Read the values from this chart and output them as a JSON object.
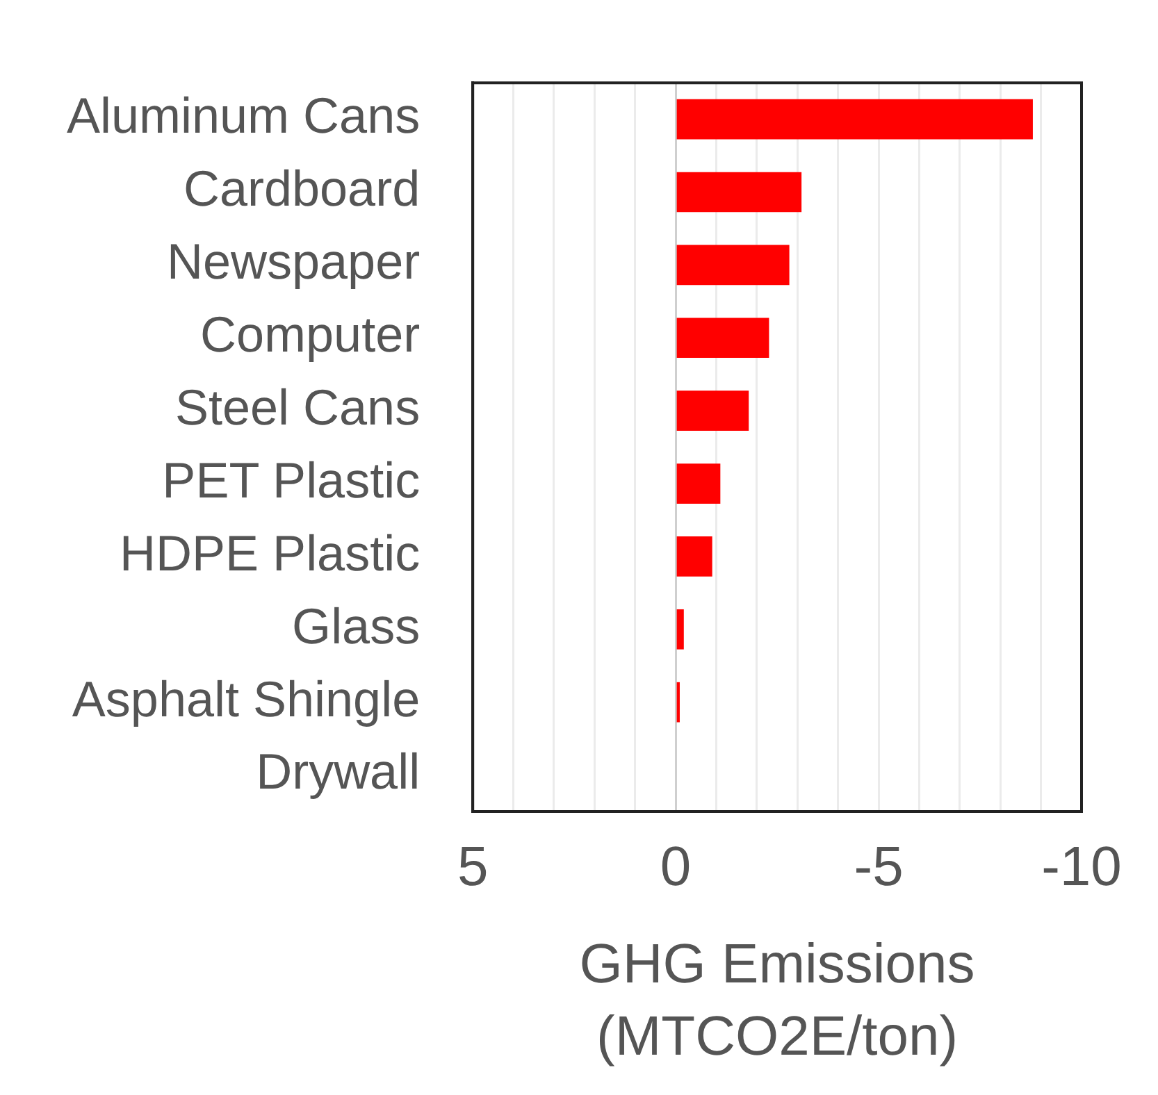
{
  "chart_data": {
    "type": "bar",
    "orientation": "horizontal",
    "categories": [
      "Aluminum Cans",
      "Cardboard",
      "Newspaper",
      "Computer",
      "Steel Cans",
      "PET Plastic",
      "HDPE Plastic",
      "Glass",
      "Asphalt Shingle",
      "Drywall"
    ],
    "values": [
      -8.8,
      -3.1,
      -2.8,
      -2.3,
      -1.8,
      -1.1,
      -0.9,
      -0.2,
      -0.1,
      0
    ],
    "color": "#ff0000",
    "xlabel": "GHG Emissions (MTCO2E/ton)",
    "xlim": [
      5,
      -10
    ],
    "xticks": [
      5,
      {
        "value": 4,
        "label": null
      },
      {
        "value": 3,
        "label": null
      },
      {
        "value": 2,
        "label": null
      },
      {
        "value": 1,
        "label": null
      },
      0,
      {
        "value": -1,
        "label": null
      },
      {
        "value": -2,
        "label": null
      },
      {
        "value": -3,
        "label": null
      },
      {
        "value": -4,
        "label": null
      },
      -5,
      {
        "value": -6,
        "label": null
      },
      {
        "value": -7,
        "label": null
      },
      {
        "value": -8,
        "label": null
      },
      {
        "value": -9,
        "label": null
      },
      -10
    ],
    "grid": "x",
    "legend": false
  }
}
